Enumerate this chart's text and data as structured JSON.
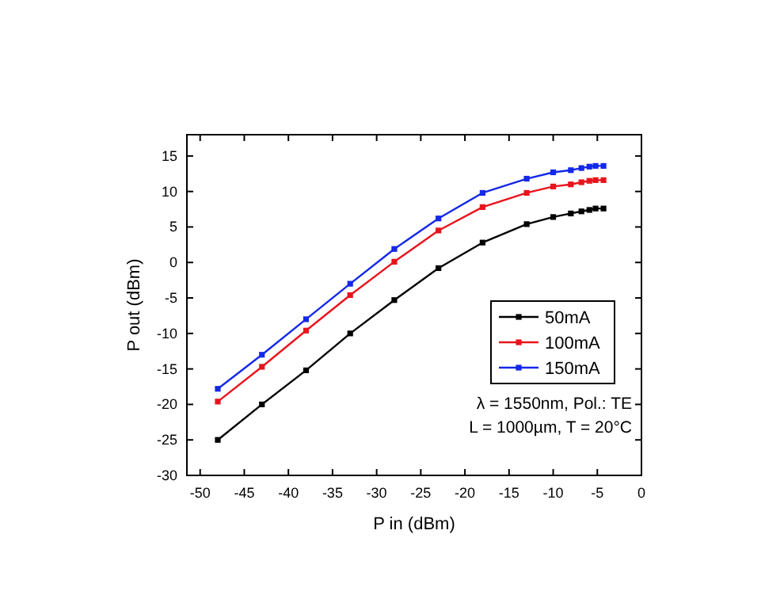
{
  "chart_data": {
    "type": "line",
    "xlabel": "P in (dBm)",
    "ylabel": "P out (dBm)",
    "x": [
      -48,
      -43,
      -38,
      -33,
      -28,
      -23,
      -18,
      -13,
      -10,
      -8,
      -6.8,
      -5.9,
      -5.2,
      -4.3
    ],
    "series": [
      {
        "name": "50mA",
        "color": "#000000",
        "values": [
          -25,
          -20,
          -15.2,
          -10,
          -5.3,
          -0.8,
          2.8,
          5.4,
          6.4,
          6.9,
          7.2,
          7.4,
          7.6,
          7.6
        ]
      },
      {
        "name": "100mA",
        "color": "#e8141c",
        "values": [
          -19.6,
          -14.7,
          -9.6,
          -4.6,
          0.1,
          4.5,
          7.8,
          9.8,
          10.7,
          11,
          11.3,
          11.5,
          11.6,
          11.6
        ]
      },
      {
        "name": "150mA",
        "color": "#1428e8",
        "values": [
          -17.8,
          -13,
          -8,
          -3,
          1.9,
          6.2,
          9.8,
          11.8,
          12.7,
          13,
          13.3,
          13.5,
          13.6,
          13.6
        ]
      }
    ],
    "xlim": [
      -51.5,
      0
    ],
    "xticks": [
      -50,
      -45,
      -40,
      -35,
      -30,
      -25,
      -20,
      -15,
      -10,
      -5,
      0
    ],
    "ylim": [
      -30,
      18
    ],
    "yticks": [
      -30,
      -25,
      -20,
      -15,
      -10,
      -5,
      0,
      5,
      10,
      15
    ],
    "marker": "square",
    "legend": "bottom right",
    "grid": false,
    "annotations": [
      "λ = 1550nm, Pol.: TE",
      "L = 1000µm, T = 20°C"
    ]
  }
}
